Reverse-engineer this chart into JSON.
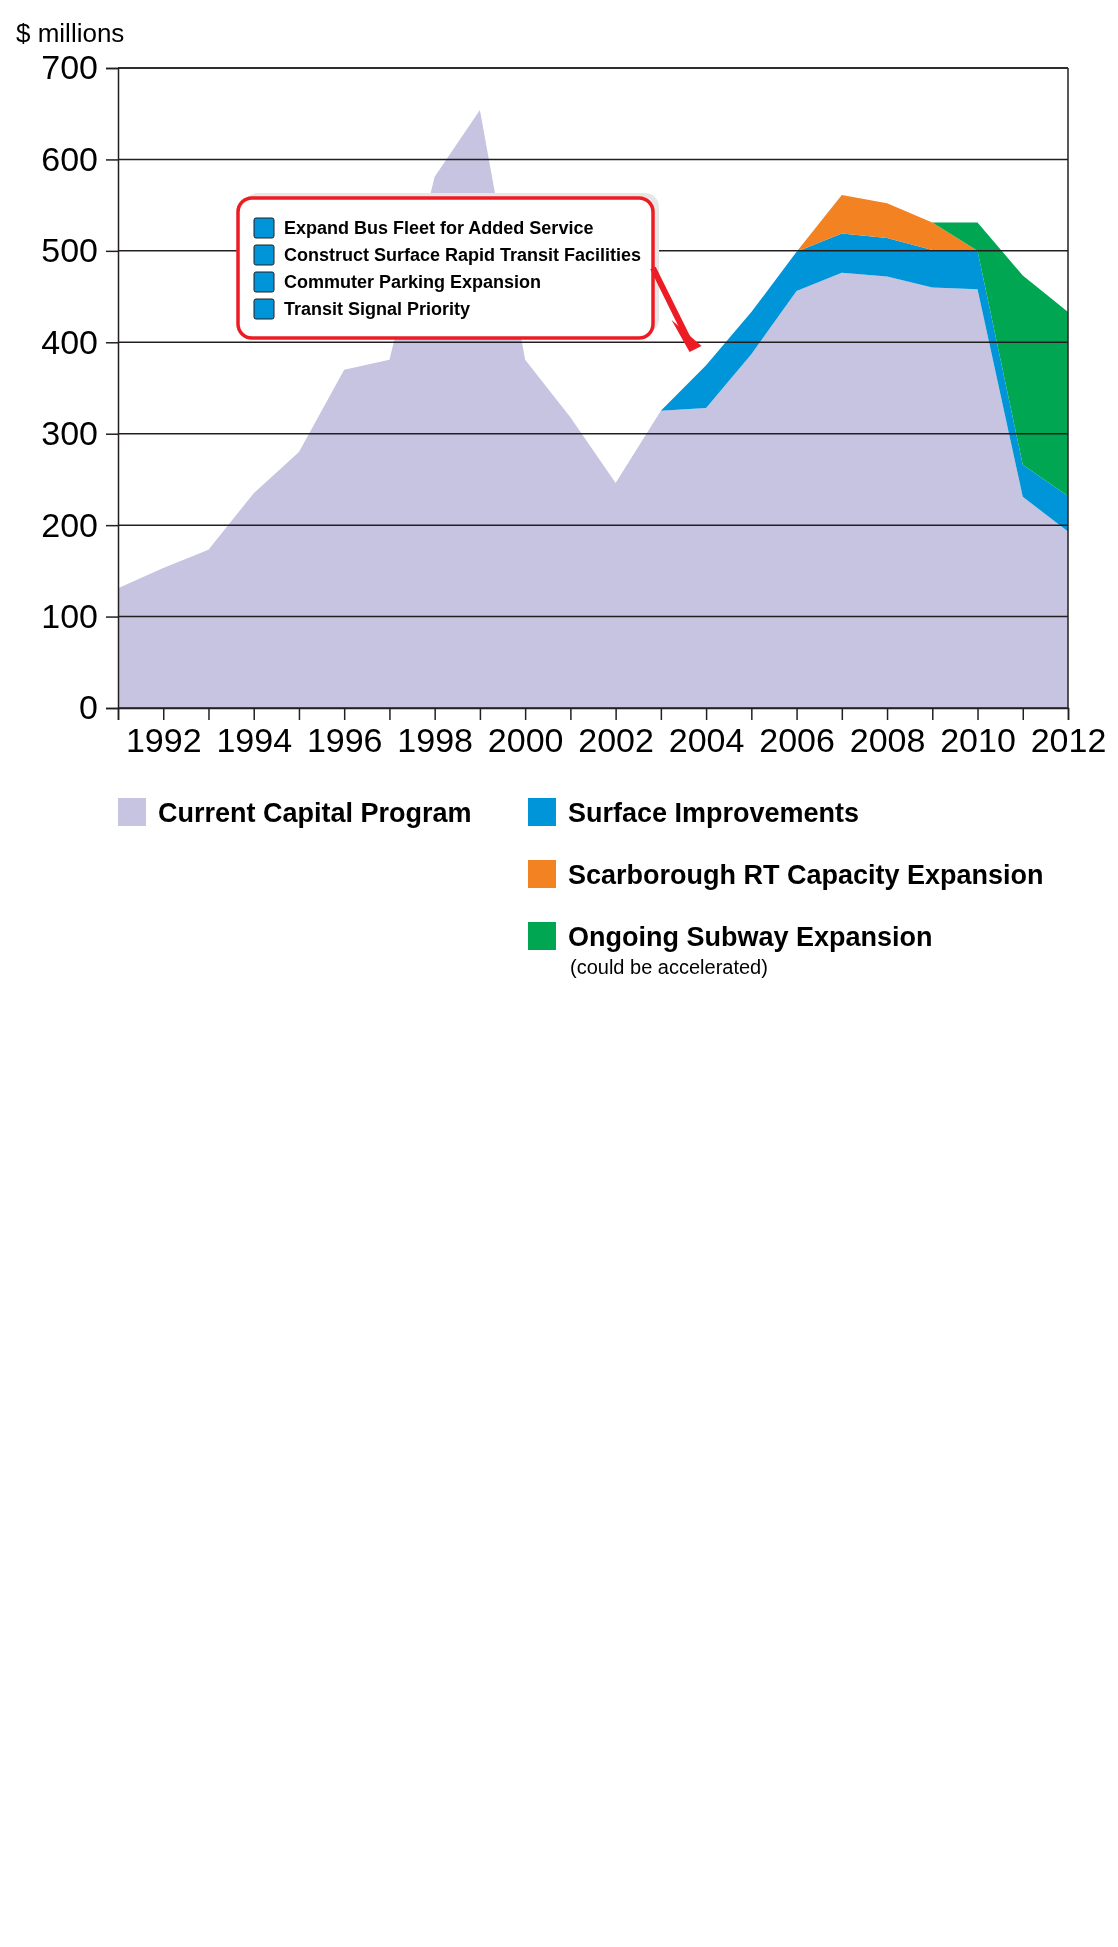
{
  "chart_data": {
    "type": "area",
    "stacked": true,
    "ylabel": "$ millions",
    "x": [
      1991,
      1992,
      1993,
      1994,
      1995,
      1996,
      1997,
      1998,
      1999,
      2000,
      2001,
      2002,
      2003,
      2004,
      2005,
      2006,
      2007,
      2008,
      2009,
      2010,
      2011,
      2012
    ],
    "xlim": [
      1991,
      2012
    ],
    "xticks": [
      {
        "value": 1991,
        "label": null
      },
      1992,
      {
        "value": 1993,
        "label": null
      },
      1994,
      {
        "value": 1995,
        "label": null
      },
      1996,
      {
        "value": 1997,
        "label": null
      },
      1998,
      {
        "value": 1999,
        "label": null
      },
      2000,
      {
        "value": 2001,
        "label": null
      },
      2002,
      {
        "value": 2003,
        "label": null
      },
      2004,
      {
        "value": 2005,
        "label": null
      },
      2006,
      {
        "value": 2007,
        "label": null
      },
      2008,
      {
        "value": 2009,
        "label": null
      },
      2010,
      {
        "value": 2011,
        "label": null
      },
      2012
    ],
    "ylim": [
      0,
      700
    ],
    "yticks": [
      0,
      100,
      200,
      300,
      400,
      500,
      600,
      700
    ],
    "grid": "y",
    "legend": "bottom",
    "series": [
      {
        "name": "Current Capital Program",
        "color": "#c6c4e0",
        "values": [
          131,
          153,
          173,
          235,
          280,
          370,
          381,
          581,
          654,
          381,
          318,
          246,
          325,
          328,
          387,
          456,
          476,
          472,
          460,
          458,
          231,
          193
        ]
      },
      {
        "name": "Surface Improvements",
        "color": "#0095d9",
        "values": [
          null,
          null,
          null,
          null,
          null,
          null,
          null,
          null,
          null,
          null,
          null,
          null,
          0,
          47,
          46,
          43,
          43,
          42,
          41,
          42,
          35,
          39
        ]
      },
      {
        "name": "Scarborough RT Capacity Expansion",
        "color": "#f28222",
        "values": [
          null,
          null,
          null,
          null,
          null,
          null,
          null,
          null,
          null,
          null,
          null,
          null,
          null,
          null,
          null,
          0,
          42,
          38,
          30,
          0,
          null,
          null
        ]
      },
      {
        "name": "Ongoing Subway Expansion",
        "color": "#00a651",
        "values": [
          null,
          null,
          null,
          null,
          null,
          null,
          null,
          null,
          null,
          null,
          null,
          null,
          null,
          null,
          null,
          null,
          null,
          null,
          0,
          31,
          207,
          201
        ]
      }
    ],
    "annotations": [
      "Expand Bus Fleet for Added Service",
      "Construct Surface Rapid Transit Facilities",
      "Commuter Parking Expansion",
      "Transit Signal Priority",
      "(could be accelerated)"
    ]
  }
}
